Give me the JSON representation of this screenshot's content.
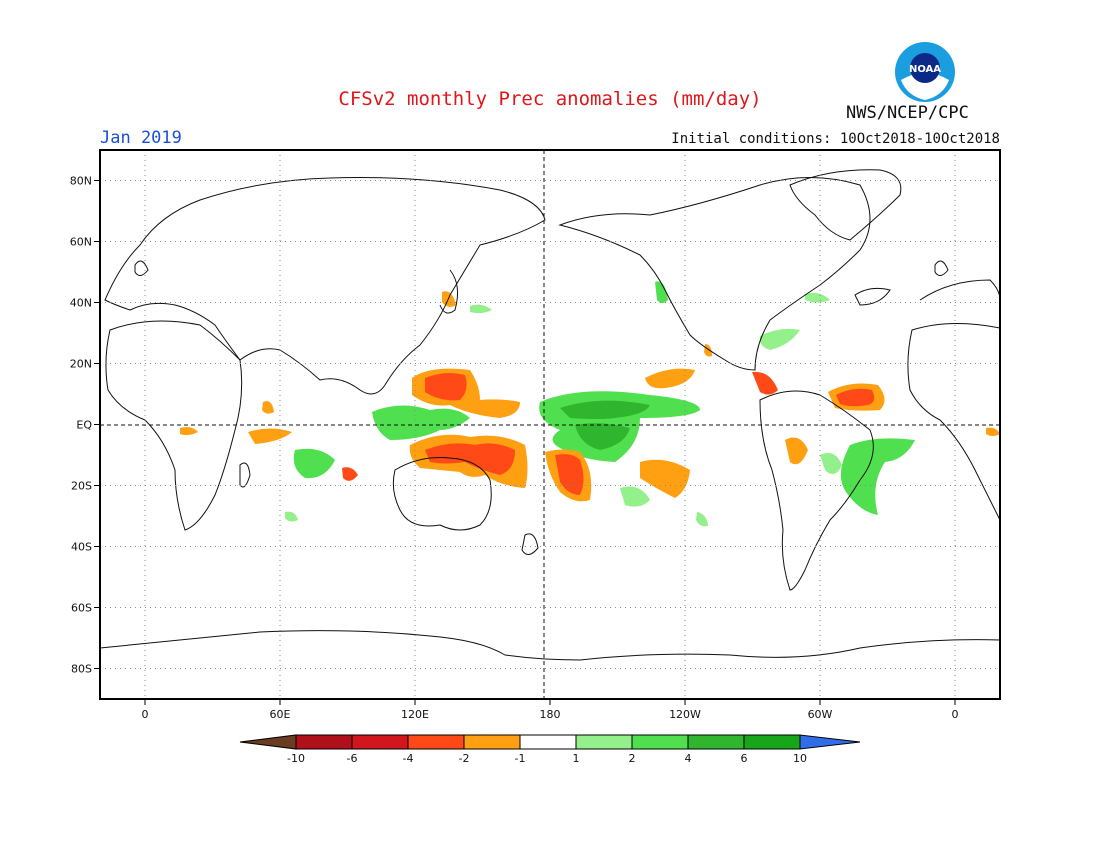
{
  "header": {
    "title": "CFSv2 monthly Prec anomalies (mm/day)",
    "agency": "NWS/NCEP/CPC",
    "logo_text": "NOAA",
    "forecast_month": "Jan 2019",
    "initial_conditions": "Initial conditions: 10Oct2018-10Oct2018"
  },
  "map": {
    "projection": "equirectangular",
    "lon_range": [
      -20,
      380
    ],
    "lat_range": [
      -90,
      90
    ],
    "lat_ticks": [
      {
        "lat": 80,
        "label": "80N"
      },
      {
        "lat": 60,
        "label": "60N"
      },
      {
        "lat": 40,
        "label": "40N"
      },
      {
        "lat": 20,
        "label": "20N"
      },
      {
        "lat": 0,
        "label": "EQ"
      },
      {
        "lat": -20,
        "label": "20S"
      },
      {
        "lat": -40,
        "label": "40S"
      },
      {
        "lat": -60,
        "label": "60S"
      },
      {
        "lat": -80,
        "label": "80S"
      }
    ],
    "lon_ticks": [
      {
        "lon": 0,
        "label": "0"
      },
      {
        "lon": 60,
        "label": "60E"
      },
      {
        "lon": 120,
        "label": "120E"
      },
      {
        "lon": 180,
        "label": "180"
      },
      {
        "lon": 240,
        "label": "120W"
      },
      {
        "lon": 300,
        "label": "60W"
      },
      {
        "lon": 360,
        "label": "0"
      }
    ],
    "grid": "dotted"
  },
  "colorbar": {
    "labels": [
      "-10",
      "-6",
      "-4",
      "-2",
      "-1",
      "1",
      "2",
      "4",
      "6",
      "10"
    ],
    "colors": [
      "#6b3b22",
      "#b0101a",
      "#d2161d",
      "#ff4a17",
      "#ff9f12",
      "#ffffff",
      "#94f08a",
      "#50e04f",
      "#30b52e",
      "#17a51a",
      "#2f6ee8"
    ]
  },
  "chart_data": {
    "type": "heatmap",
    "field": "Precipitation anomaly",
    "units": "mm/day",
    "anomaly_regions": [
      {
        "region": "NW tropical Pacific",
        "lon": [
          140,
          160
        ],
        "lat": [
          8,
          18
        ],
        "level": -4
      },
      {
        "region": "W Pacific N of equator",
        "lon": [
          150,
          175
        ],
        "lat": [
          5,
          10
        ],
        "level": -2
      },
      {
        "region": "New Guinea / Coral Sea",
        "lon": [
          130,
          170
        ],
        "lat": [
          -18,
          -4
        ],
        "level": -4
      },
      {
        "region": "SW Pacific",
        "lon": [
          180,
          195
        ],
        "lat": [
          -26,
          -10
        ],
        "level": -4
      },
      {
        "region": "S Pacific",
        "lon": [
          215,
          230
        ],
        "lat": [
          -24,
          -14
        ],
        "level": -2
      },
      {
        "region": "Equatorial central Pacific",
        "lon": [
          180,
          240
        ],
        "lat": [
          -4,
          10
        ],
        "level": 4
      },
      {
        "region": "Central Pacific core",
        "lon": [
          190,
          215
        ],
        "lat": [
          -8,
          8
        ],
        "level": 6
      },
      {
        "region": "Tropical Atlantic",
        "lon": [
          315,
          340
        ],
        "lat": [
          4,
          14
        ],
        "level": -4
      },
      {
        "region": "Brazil",
        "lon": [
          310,
          330
        ],
        "lat": [
          -30,
          -4
        ],
        "level": 2
      },
      {
        "region": "Indian Ocean",
        "lon": [
          55,
          90
        ],
        "lat": [
          -8,
          -4
        ],
        "level": -2
      },
      {
        "region": "Maritime continent",
        "lon": [
          95,
          125
        ],
        "lat": [
          -10,
          5
        ],
        "level": 2
      },
      {
        "region": "E Indian Ocean",
        "lon": [
          85,
          100
        ],
        "lat": [
          -20,
          -10
        ],
        "level": 2
      }
    ]
  }
}
